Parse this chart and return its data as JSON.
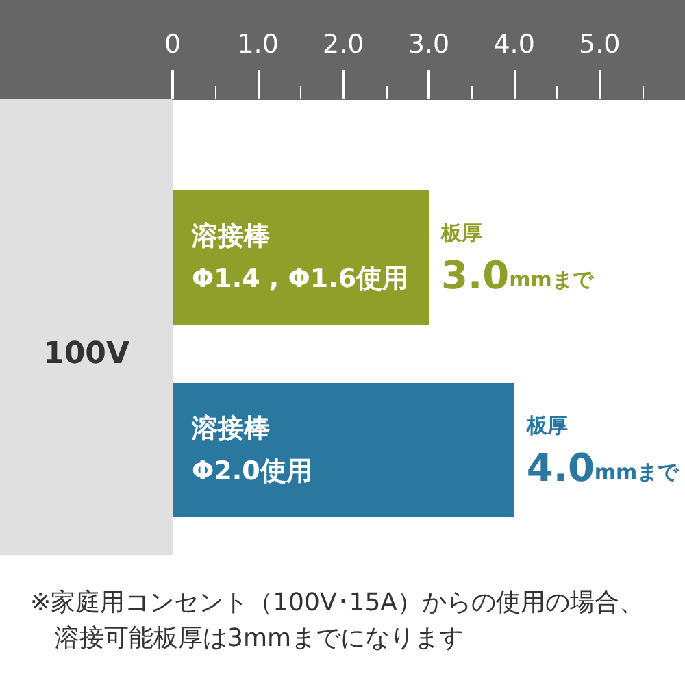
{
  "chart_data": {
    "type": "bar",
    "orientation": "horizontal",
    "ylabel": "100V",
    "categories": [
      "溶接棒\nΦ1.4 , Φ1.6使用",
      "溶接棒\nΦ2.0使用"
    ],
    "values": [
      3.0,
      4.0
    ],
    "colors": [
      "#8e9f2a",
      "#2a77a0"
    ],
    "value_labels": [
      "板厚\n3.0mmまで",
      "板厚\n4.0mmまで"
    ],
    "xlim": [
      0,
      6.0
    ],
    "xticks": [
      0,
      {
        "value": 0.5,
        "label": null
      },
      {
        "value": 1,
        "label": "1.0"
      },
      {
        "value": 1.5,
        "label": null
      },
      {
        "value": 2,
        "label": "2.0"
      },
      {
        "value": 2.5,
        "label": null
      },
      {
        "value": 3,
        "label": "3.0"
      },
      {
        "value": 3.5,
        "label": null
      },
      {
        "value": 4,
        "label": "4.0"
      },
      {
        "value": 4.5,
        "label": null
      },
      {
        "value": 5,
        "label": "5.0"
      },
      {
        "value": 5.5,
        "label": null
      }
    ],
    "annotations": [
      "※家庭用コンセント（100V･15A）からの使用の場合、溶接可能板厚は3mmまでになります"
    ]
  }
}
